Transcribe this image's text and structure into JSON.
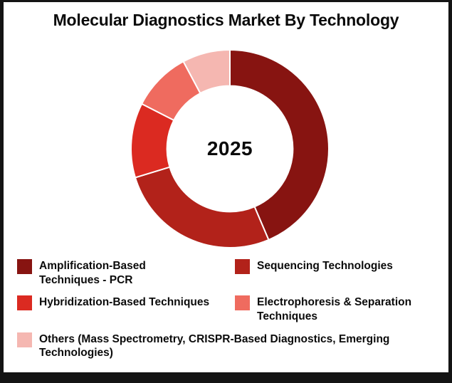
{
  "title": "Molecular Diagnostics Market By Technology",
  "chart_data": {
    "type": "pie",
    "subtype": "donut",
    "title": "Molecular Diagnostics Market By Technology",
    "center_label": "2025",
    "start_angle_deg": 0,
    "direction": "clockwise",
    "inner_radius_ratio": 0.636,
    "legend_position": "bottom",
    "values_shown_on_chart": false,
    "segments": [
      {
        "label": "Amplification-Based Techniques - PCR",
        "lines": [
          "Amplification-Based",
          "Techniques - PCR"
        ],
        "value_pct": 43.6,
        "color": "#871411"
      },
      {
        "label": "Sequencing Technologies",
        "lines": [
          "Sequencing Technologies"
        ],
        "value_pct": 26.7,
        "color": "#B2221A"
      },
      {
        "label": "Hybridization-Based Techniques",
        "lines": [
          "Hybridization-Based Techniques"
        ],
        "value_pct": 12.2,
        "color": "#DB2A21"
      },
      {
        "label": "Electrophoresis & Separation Techniques",
        "lines": [
          "Electrophoresis & Separation",
          "Techniques"
        ],
        "value_pct": 9.7,
        "color": "#EF6B5F"
      },
      {
        "label": "Others (Mass Spectrometry, CRISPR-Based Diagnostics, Emerging Technologies)",
        "lines": [
          "Others (Mass Spectrometry, CRISPR-Based Diagnostics, Emerging",
          "Technologies)"
        ],
        "value_pct": 7.8,
        "color": "#F5B7B1"
      }
    ]
  }
}
